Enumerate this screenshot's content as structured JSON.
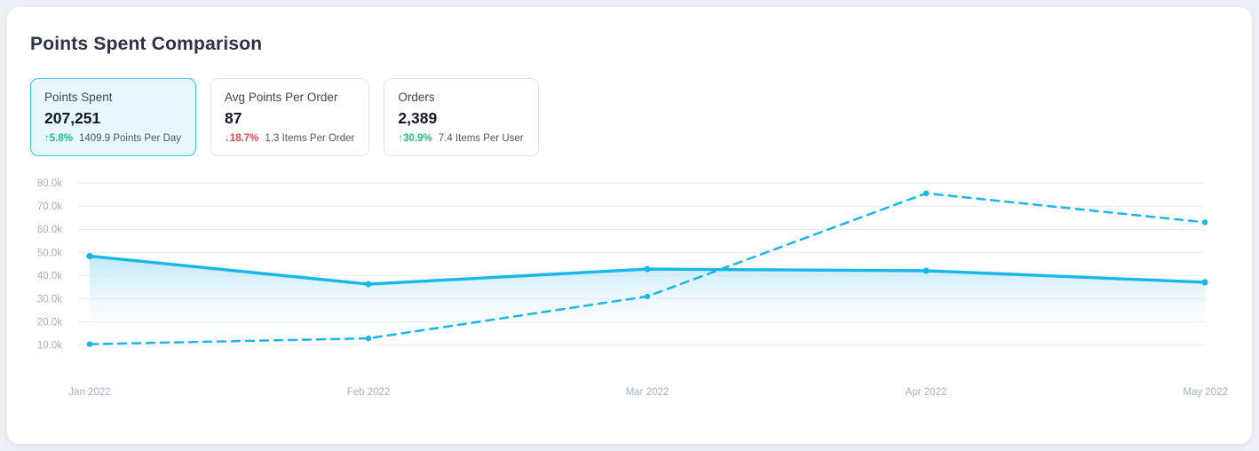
{
  "title": "Points Spent Comparison",
  "stats": [
    {
      "id": "points-spent",
      "label": "Points Spent",
      "value": "207,251",
      "delta": "5.8%",
      "delta_direction": "up",
      "sub_label": "1409.9 Points Per Day",
      "selected": true
    },
    {
      "id": "avg-points-per-order",
      "label": "Avg Points Per Order",
      "value": "87",
      "delta": "18.7%",
      "delta_direction": "down",
      "sub_label": "1.3 Items Per Order",
      "selected": false
    },
    {
      "id": "orders",
      "label": "Orders",
      "value": "2,389",
      "delta": "30.9%",
      "delta_direction": "up",
      "sub_label": "7.4 Items Per User",
      "selected": false
    }
  ],
  "chart_data": {
    "type": "line",
    "title": "Points Spent Comparison",
    "x": [
      "Jan 2022",
      "Feb 2022",
      "Mar 2022",
      "Apr 2022",
      "May 2022"
    ],
    "series": [
      {
        "name": "solid",
        "line_style": "solid",
        "area_fill": true,
        "values": [
          48400,
          36300,
          42800,
          42100,
          37100
        ]
      },
      {
        "name": "dashed",
        "line_style": "dashed",
        "area_fill": false,
        "values": [
          10400,
          12900,
          31000,
          75500,
          63000
        ]
      }
    ],
    "y_ticks": [
      10000,
      20000,
      30000,
      40000,
      50000,
      60000,
      70000,
      80000
    ],
    "y_tick_labels": [
      "10.0k",
      "20.0k",
      "30.0k",
      "40.0k",
      "50.0k",
      "60.0k",
      "70.0k",
      "80.0k"
    ],
    "ylim": [
      5000,
      84000
    ],
    "xlabel": "",
    "ylabel": "",
    "grid": "horizontal",
    "legend": "none"
  },
  "colors": {
    "accent_line": "#18b7e9",
    "selected_card_border": "#3ac3e8",
    "selected_card_bg": "#e8f7fd",
    "delta_up": "#22c07d",
    "delta_down": "#e4485c",
    "gridline": "#e9ebf0",
    "axis_label": "#a7b2c3",
    "area_fill_top": "rgba(172,224,246,0.80)",
    "area_fill_bottom": "rgba(255,255,255,0)"
  },
  "icons": {
    "up_arrow": "↑",
    "down_arrow": "↓"
  }
}
